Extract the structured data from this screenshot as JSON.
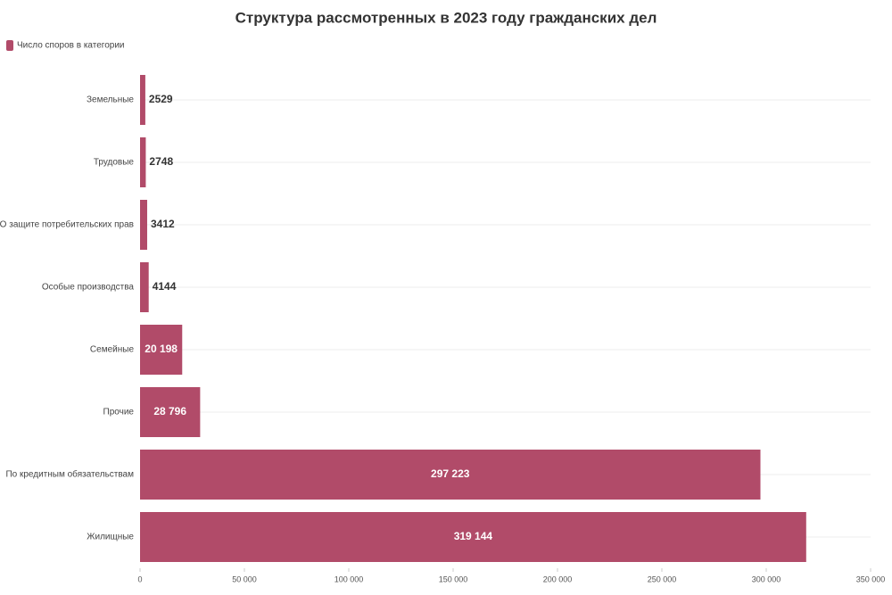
{
  "chart_data": {
    "type": "barh",
    "title": "Структура рассмотренных в 2023 году гражданских дел",
    "categories": [
      "Земельные",
      "Трудовые",
      "О защите потребительских прав",
      "Особые производства",
      "Семейные",
      "Прочие",
      "По кредитным обязательствам",
      "Жилищные"
    ],
    "series": [
      {
        "name": "Число споров в категории",
        "color": "#b14b69",
        "values": [
          2529,
          2748,
          3412,
          4144,
          20198,
          28796,
          297223,
          319144
        ],
        "value_labels": [
          "2529",
          "2748",
          "3412",
          "4144",
          "20 198",
          "28 796",
          "297 223",
          "319 144"
        ]
      }
    ],
    "xlim": [
      0,
      350000
    ],
    "xticks": [
      0,
      {
        "value": 50000,
        "label": "50 000"
      },
      {
        "value": 100000,
        "label": "100 000"
      },
      {
        "value": 150000,
        "label": "150 000"
      },
      {
        "value": 200000,
        "label": "200 000"
      },
      {
        "value": 250000,
        "label": "250 000"
      },
      {
        "value": 300000,
        "label": "300 000"
      },
      {
        "value": 350000,
        "label": "350 000"
      }
    ],
    "legend": "top-left"
  }
}
